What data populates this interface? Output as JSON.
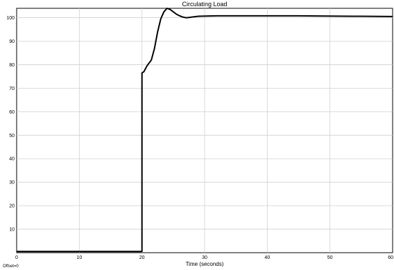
{
  "chart_data": {
    "type": "line",
    "title": "Circulating Load",
    "xlabel": "Time (seconds)",
    "ylabel": "",
    "xlim": [
      0,
      60
    ],
    "ylim": [
      0,
      104
    ],
    "xticks": [
      0,
      10,
      20,
      30,
      40,
      50,
      60
    ],
    "yticks": [
      10,
      20,
      30,
      40,
      50,
      60,
      70,
      80,
      90,
      100
    ],
    "grid": true,
    "legend": "none",
    "offset_text": "Offset=0",
    "series": [
      {
        "color": "#000000",
        "x": [
          0,
          20,
          20,
          20.3,
          20.8,
          21.5,
          22.0,
          22.5,
          23.0,
          23.5,
          24.0,
          24.5,
          25.0,
          25.5,
          26.0,
          26.5,
          27.0,
          27.5,
          28.0,
          29.0,
          30.0,
          32.0,
          35.0,
          40.0,
          45.0,
          50.0,
          55.0,
          60.0
        ],
        "y": [
          0.5,
          0.5,
          76.5,
          77.0,
          79.5,
          82.0,
          87.0,
          94.0,
          99.5,
          102.5,
          104.0,
          103.5,
          102.5,
          101.5,
          100.8,
          100.3,
          100.0,
          100.1,
          100.3,
          100.6,
          100.7,
          100.8,
          100.8,
          100.8,
          100.8,
          100.7,
          100.6,
          100.5
        ]
      }
    ]
  }
}
